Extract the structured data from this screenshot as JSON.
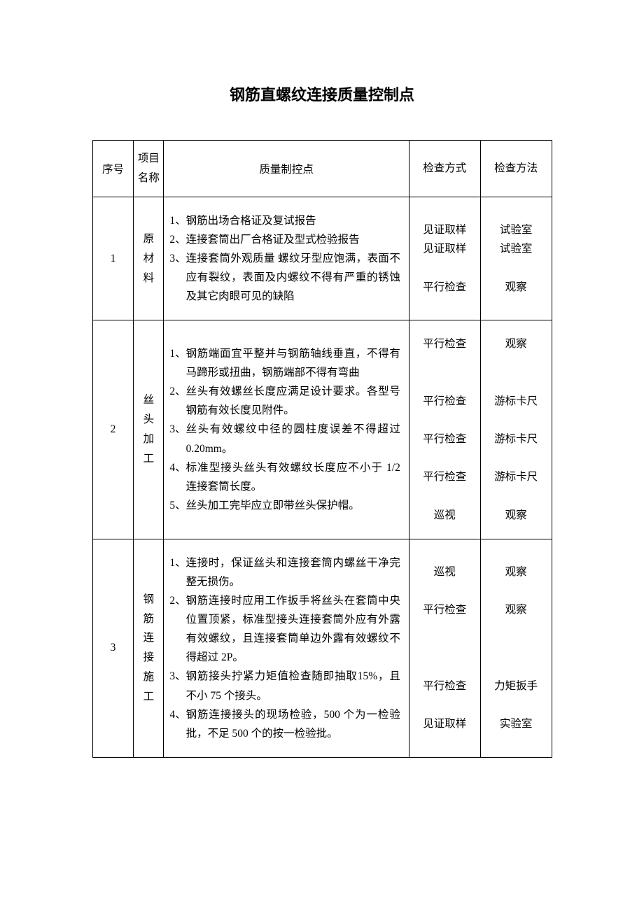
{
  "title": "钢筋直螺纹连接质量控制点",
  "watermark_text": "",
  "headers": {
    "seq": "序号",
    "proj": "项目\n名称",
    "qc": "质量制控点",
    "mode": "检查方式",
    "method": "检查方法"
  },
  "rows": [
    {
      "seq": "1",
      "proj": "原材料",
      "points": [
        {
          "n": "1、",
          "text": "钢筋出场合格证及复试报告"
        },
        {
          "n": "2、",
          "text": "连接套筒出厂合格证及型式检验报告"
        },
        {
          "n": "3、",
          "text": "连接套筒外观质量 螺纹牙型应饱满，表面不应有裂纹，表面及内螺纹不得有严重的锈蚀及其它肉眼可见的缺陷"
        }
      ],
      "modes": [
        "见证取样",
        "见证取样",
        "",
        "平行检查"
      ],
      "methods": [
        "试验室",
        "试验室",
        "",
        "观察"
      ]
    },
    {
      "seq": "2",
      "proj": "丝头加工",
      "points": [
        {
          "n": "1、",
          "text": "钢筋端面宜平整并与钢筋轴线垂直，不得有马蹄形或扭曲，钢筋端部不得有弯曲"
        },
        {
          "n": "2、",
          "text": "丝头有效螺丝长度应满足设计要求。各型号钢筋有效长度见附件。"
        },
        {
          "n": "3、",
          "text": "丝头有效螺纹中径的圆柱度误差不得超过 0.20mm。"
        },
        {
          "n": "4、",
          "text": "标准型接头丝头有效螺纹长度应不小于 1/2 连接套筒长度。"
        },
        {
          "n": "5、",
          "text": "丝头加工完毕应立即带丝头保护帽。"
        }
      ],
      "modes": [
        "平行检查",
        "",
        "",
        "平行检查",
        "",
        "平行检查",
        "",
        "平行检查",
        "",
        "巡视"
      ],
      "methods": [
        "观察",
        "",
        "",
        "游标卡尺",
        "",
        "游标卡尺",
        "",
        "游标卡尺",
        "",
        "观察"
      ]
    },
    {
      "seq": "3",
      "proj": "钢筋连接施工",
      "points": [
        {
          "n": "1、",
          "text": "连接时，保证丝头和连接套筒内螺丝干净完整无损伤。"
        },
        {
          "n": "2、",
          "text": "钢筋连接时应用工作扳手将丝头在套筒中央位置顶紧，标准型接头连接套筒外应有外露有效螺纹，且连接套筒单边外露有效螺纹不得超过 2P。"
        },
        {
          "n": "3、",
          "text": "钢筋接头拧紧力矩值检查随即抽取15%，且不小 75 个接头。"
        },
        {
          "n": "4、",
          "text": "钢筋连接接头的现场检验，500 个为一检验批，不足 500 个的按一检验批。"
        }
      ],
      "modes": [
        "巡视",
        "",
        "平行检查",
        "",
        "",
        "",
        "平行检查",
        "",
        "见证取样"
      ],
      "methods": [
        "观察",
        "",
        "观察",
        "",
        "",
        "",
        "力矩扳手",
        "",
        "实验室"
      ]
    }
  ]
}
